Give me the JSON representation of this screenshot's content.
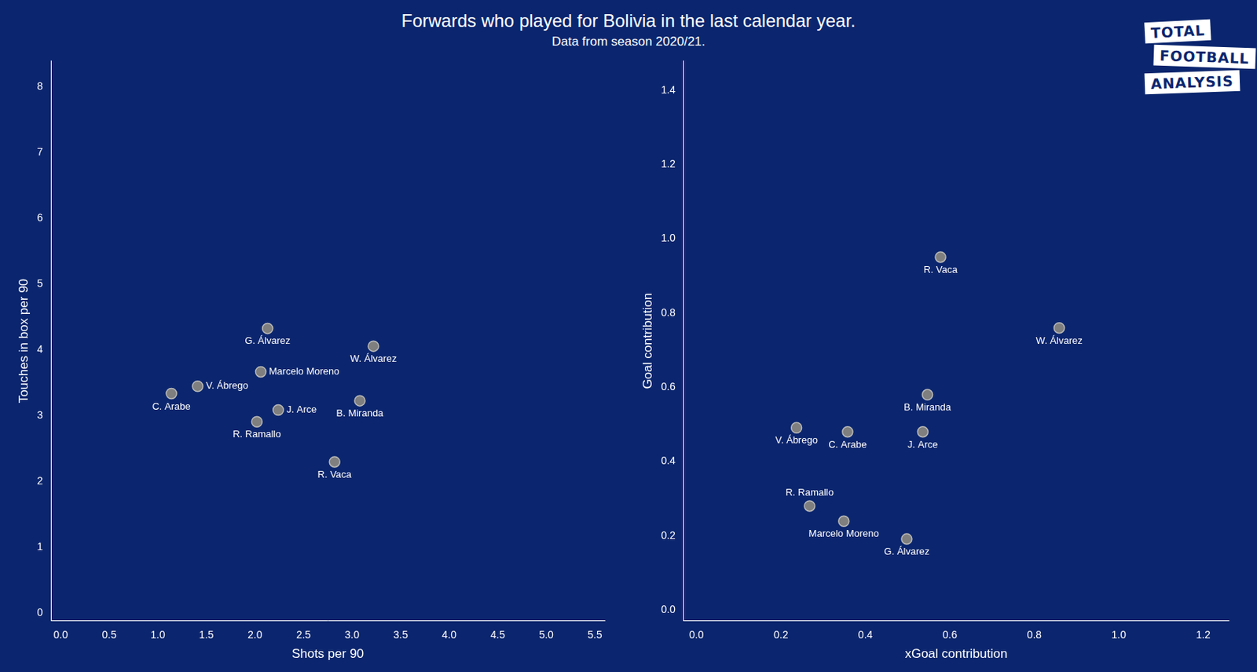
{
  "title": "Forwards who played for Bolivia in the last calendar year.",
  "subtitle": "Data from season 2020/21.",
  "logo": [
    "TOTAL",
    "FOOTBALL",
    "ANALYSIS"
  ],
  "chart_data": [
    {
      "type": "scatter",
      "x_label": "Shots per 90",
      "y_label": "Touches in box per 90",
      "color": "#7f7f7f",
      "grid": false,
      "xlim": [
        -0.1,
        5.6
      ],
      "ylim": [
        -0.12,
        8.4
      ],
      "xticks": [
        {
          "value": 0,
          "label": "0.0"
        },
        0.5,
        {
          "value": 1,
          "label": "1.0"
        },
        1.5,
        {
          "value": 2,
          "label": "2.0"
        },
        2.5,
        {
          "value": 3,
          "label": "3.0"
        },
        3.5,
        {
          "value": 4,
          "label": "4.0"
        },
        4.5,
        {
          "value": 5,
          "label": "5.0"
        },
        5.5
      ],
      "yticks": [
        0,
        1,
        2,
        3,
        4,
        5,
        6,
        7,
        8
      ],
      "point_labels": [
        "G. Álvarez",
        "W. Álvarez",
        "Marcelo Moreno",
        "V. Ábrego",
        "C. Arabe",
        "J. Arce",
        "R. Ramallo",
        "B. Miranda",
        "R. Vaca"
      ],
      "x": [
        2.13,
        3.22,
        2.06,
        1.41,
        1.14,
        2.24,
        2.02,
        3.08,
        2.82
      ],
      "values": [
        4.33,
        4.06,
        3.67,
        3.45,
        3.34,
        3.09,
        2.91,
        3.23,
        2.3
      ]
    },
    {
      "type": "scatter",
      "x_label": "xGoal contribution",
      "y_label": "Goal contribution",
      "color": "#7f7f7f",
      "grid": false,
      "xlim": [
        -0.03,
        1.26
      ],
      "ylim": [
        -0.03,
        1.48
      ],
      "xticks": [
        {
          "value": 0,
          "label": "0.0"
        },
        0.2,
        0.4,
        0.6,
        0.8,
        {
          "value": 1,
          "label": "1.0"
        },
        1.2
      ],
      "yticks": [
        {
          "value": 0,
          "label": "0.0"
        },
        0.2,
        0.4,
        0.6,
        0.8,
        {
          "value": 1,
          "label": "1.0"
        },
        1.2,
        1.4
      ],
      "point_labels": [
        "G. Álvarez",
        "W. Álvarez",
        "Marcelo Moreno",
        "V. Ábrego",
        "C. Arabe",
        "J. Arce",
        "R. Ramallo",
        "B. Miranda",
        "R. Vaca"
      ],
      "x": [
        0.498,
        0.859,
        0.349,
        0.237,
        0.358,
        0.536,
        0.268,
        0.547,
        0.578
      ],
      "values": [
        0.191,
        0.76,
        0.239,
        0.491,
        0.48,
        0.48,
        0.28,
        0.58,
        0.951
      ]
    }
  ]
}
